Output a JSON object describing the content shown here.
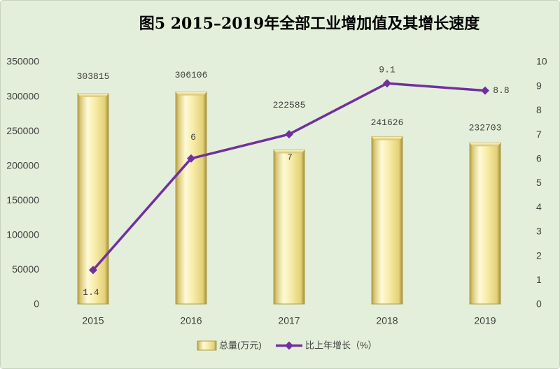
{
  "colors": {
    "background": "#e3efda",
    "border": "#c7d2bd",
    "bar_edge": "#b39c45",
    "line": "#7030a0"
  },
  "chart_data": {
    "type": "bar",
    "title": "图5 2015–2019年全部工业增加值及其增长速度",
    "categories": [
      "2015",
      "2016",
      "2017",
      "2018",
      "2019"
    ],
    "series": [
      {
        "name": "总量(万元)",
        "type": "bar",
        "axis": "left",
        "values": [
          303815,
          306106,
          222585,
          241626,
          232703
        ]
      },
      {
        "name": "比上年增长（%）",
        "type": "line",
        "axis": "right",
        "marker": "diamond",
        "values": [
          1.4,
          6,
          7,
          9.1,
          8.8
        ]
      }
    ],
    "y_left": {
      "min": 0,
      "max": 350000,
      "ticks": [
        0,
        50000,
        100000,
        150000,
        200000,
        250000,
        300000,
        350000
      ]
    },
    "y_right": {
      "min": 0,
      "max": 10,
      "ticks": [
        0,
        1,
        2,
        3,
        4,
        5,
        6,
        7,
        8,
        9,
        10
      ]
    },
    "grid": false,
    "legend": "bottom",
    "data_labels": true
  }
}
